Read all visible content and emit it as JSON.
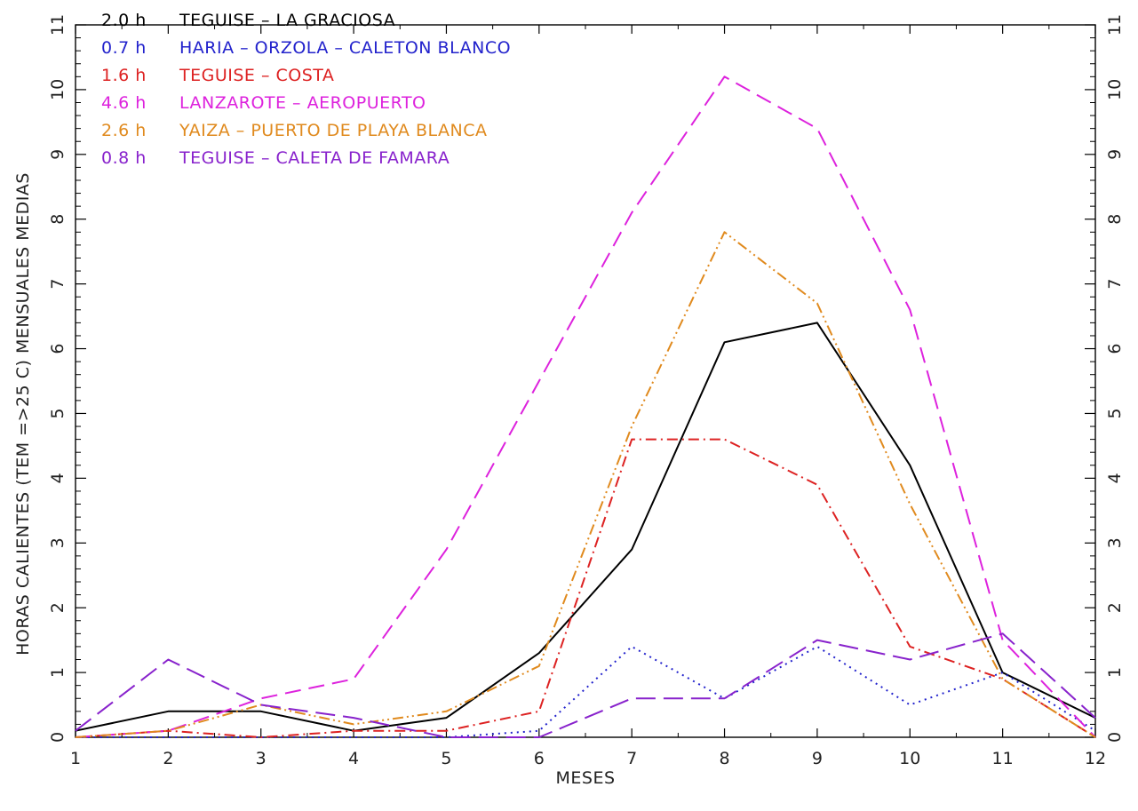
{
  "chart_data": {
    "type": "line",
    "title": "",
    "xlabel": "MESES",
    "ylabel": "HORAS CALIENTES (TEM =>25 C) MENSUALES MEDIAS",
    "x": [
      1,
      2,
      3,
      4,
      5,
      6,
      7,
      8,
      9,
      10,
      11,
      12
    ],
    "x_ticks": [
      "1",
      "2",
      "3",
      "4",
      "5",
      "6",
      "7",
      "8",
      "9",
      "10",
      "11",
      "12"
    ],
    "y_ticks": [
      "0",
      "1",
      "2",
      "3",
      "4",
      "5",
      "6",
      "7",
      "8",
      "9",
      "10",
      "11"
    ],
    "xlim": [
      1,
      12
    ],
    "ylim": [
      0,
      11
    ],
    "grid": false,
    "legend_position": "top-left",
    "series": [
      {
        "name": "TEGUISE – LA GRACIOSA",
        "legend_value": "2.0 h",
        "color": "#000000",
        "style": "solid",
        "values": [
          0.1,
          0.4,
          0.4,
          0.1,
          0.3,
          1.3,
          2.9,
          6.1,
          6.4,
          4.2,
          1.0,
          0.3
        ]
      },
      {
        "name": "HARIA – ORZOLA – CALETON BLANCO",
        "legend_value": "0.7 h",
        "color": "#2222cc",
        "style": "dotted",
        "values": [
          0.0,
          0.0,
          0.0,
          0.0,
          0.0,
          0.1,
          1.4,
          0.6,
          1.4,
          0.5,
          1.0,
          0.1
        ]
      },
      {
        "name": "TEGUISE – COSTA",
        "legend_value": "1.6 h",
        "color": "#dd2222",
        "style": "dashdot",
        "values": [
          0.0,
          0.1,
          0.0,
          0.1,
          0.1,
          0.4,
          4.6,
          4.6,
          3.9,
          1.4,
          0.9,
          0.0
        ]
      },
      {
        "name": "LANZAROTE – AEROPUERTO",
        "legend_value": "4.6 h",
        "color": "#dd22dd",
        "style": "dashed",
        "values": [
          0.0,
          0.1,
          0.6,
          0.9,
          2.9,
          5.5,
          8.1,
          10.2,
          9.4,
          6.6,
          1.5,
          0.0
        ]
      },
      {
        "name": "YAIZA – PUERTO DE PLAYA BLANCA",
        "legend_value": "2.6 h",
        "color": "#e08a1e",
        "style": "dashdotdot",
        "values": [
          0.0,
          0.1,
          0.5,
          0.2,
          0.4,
          1.1,
          4.8,
          7.8,
          6.7,
          3.6,
          0.9,
          0.0
        ]
      },
      {
        "name": "TEGUISE – CALETA DE FAMARA",
        "legend_value": "0.8 h",
        "color": "#8822cc",
        "style": "longdash",
        "values": [
          0.1,
          1.2,
          0.5,
          0.3,
          0.0,
          0.0,
          0.6,
          0.6,
          1.5,
          1.2,
          1.6,
          0.3
        ]
      }
    ]
  }
}
